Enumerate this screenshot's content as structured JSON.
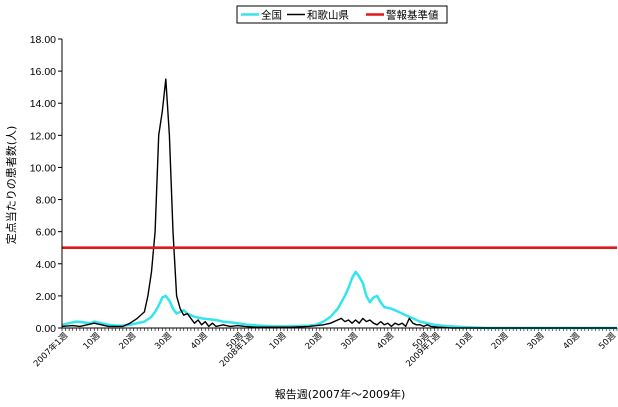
{
  "chart_data": {
    "type": "line",
    "xlabel": "報告週(2007年〜2009年)",
    "ylabel": "定点当たりの患者数(人)",
    "ylim": [
      0,
      18
    ],
    "yticks": [
      "0.00",
      "2.00",
      "4.00",
      "6.00",
      "8.00",
      "10.00",
      "12.00",
      "14.00",
      "16.00",
      "18.00"
    ],
    "xtick_labels": [
      {
        "week": 1,
        "label": "2007年1週"
      },
      {
        "week": 10,
        "label": "10週"
      },
      {
        "week": 20,
        "label": "20週"
      },
      {
        "week": 30,
        "label": "30週"
      },
      {
        "week": 40,
        "label": "40週"
      },
      {
        "week": 50,
        "label": "50週"
      },
      {
        "week": 53,
        "label": "2008年1週"
      },
      {
        "week": 62,
        "label": "10週"
      },
      {
        "week": 72,
        "label": "20週"
      },
      {
        "week": 82,
        "label": "30週"
      },
      {
        "week": 92,
        "label": "40週"
      },
      {
        "week": 102,
        "label": "50週"
      },
      {
        "week": 105,
        "label": "2009年1週"
      },
      {
        "week": 114,
        "label": "10週"
      },
      {
        "week": 124,
        "label": "20週"
      },
      {
        "week": 134,
        "label": "30週"
      },
      {
        "week": 144,
        "label": "40週"
      },
      {
        "week": 154,
        "label": "50週"
      }
    ],
    "x_range": [
      1,
      156
    ],
    "legend_position": "top",
    "grid": false,
    "series": [
      {
        "name": "全国",
        "color": "#33e6ee",
        "points": [
          [
            1,
            0.2
          ],
          [
            3,
            0.3
          ],
          [
            5,
            0.4
          ],
          [
            7,
            0.35
          ],
          [
            9,
            0.3
          ],
          [
            10,
            0.4
          ],
          [
            12,
            0.3
          ],
          [
            14,
            0.2
          ],
          [
            16,
            0.15
          ],
          [
            18,
            0.15
          ],
          [
            20,
            0.2
          ],
          [
            22,
            0.3
          ],
          [
            24,
            0.4
          ],
          [
            26,
            0.7
          ],
          [
            27,
            1.0
          ],
          [
            28,
            1.4
          ],
          [
            29,
            1.9
          ],
          [
            30,
            2.0
          ],
          [
            31,
            1.7
          ],
          [
            32,
            1.2
          ],
          [
            33,
            0.9
          ],
          [
            34,
            1.0
          ],
          [
            35,
            1.1
          ],
          [
            36,
            0.9
          ],
          [
            37,
            0.8
          ],
          [
            38,
            0.7
          ],
          [
            40,
            0.6
          ],
          [
            42,
            0.55
          ],
          [
            44,
            0.5
          ],
          [
            46,
            0.4
          ],
          [
            48,
            0.35
          ],
          [
            50,
            0.3
          ],
          [
            53,
            0.2
          ],
          [
            56,
            0.15
          ],
          [
            60,
            0.1
          ],
          [
            65,
            0.1
          ],
          [
            70,
            0.15
          ],
          [
            72,
            0.2
          ],
          [
            74,
            0.4
          ],
          [
            76,
            0.7
          ],
          [
            78,
            1.2
          ],
          [
            80,
            2.0
          ],
          [
            81,
            2.5
          ],
          [
            82,
            3.1
          ],
          [
            83,
            3.5
          ],
          [
            84,
            3.2
          ],
          [
            85,
            2.8
          ],
          [
            86,
            2.0
          ],
          [
            87,
            1.6
          ],
          [
            88,
            1.9
          ],
          [
            89,
            2.0
          ],
          [
            90,
            1.6
          ],
          [
            91,
            1.3
          ],
          [
            93,
            1.2
          ],
          [
            95,
            1.0
          ],
          [
            97,
            0.8
          ],
          [
            99,
            0.6
          ],
          [
            101,
            0.4
          ],
          [
            103,
            0.3
          ],
          [
            105,
            0.2
          ],
          [
            107,
            0.15
          ],
          [
            110,
            0.1
          ],
          [
            114,
            0.05
          ],
          [
            118,
            0.02
          ],
          [
            120,
            0.0
          ],
          [
            156,
            0.0
          ]
        ]
      },
      {
        "name": "和歌山県",
        "color": "#000000",
        "points": [
          [
            1,
            0.1
          ],
          [
            4,
            0.15
          ],
          [
            6,
            0.1
          ],
          [
            8,
            0.2
          ],
          [
            10,
            0.3
          ],
          [
            12,
            0.2
          ],
          [
            14,
            0.1
          ],
          [
            16,
            0.1
          ],
          [
            18,
            0.1
          ],
          [
            20,
            0.3
          ],
          [
            22,
            0.6
          ],
          [
            24,
            1.0
          ],
          [
            25,
            2.0
          ],
          [
            26,
            3.5
          ],
          [
            27,
            6.0
          ],
          [
            28,
            12.0
          ],
          [
            29,
            13.5
          ],
          [
            30,
            15.5
          ],
          [
            31,
            12.0
          ],
          [
            32,
            6.0
          ],
          [
            33,
            2.0
          ],
          [
            34,
            1.2
          ],
          [
            35,
            0.8
          ],
          [
            36,
            0.9
          ],
          [
            37,
            0.6
          ],
          [
            38,
            0.3
          ],
          [
            39,
            0.5
          ],
          [
            40,
            0.2
          ],
          [
            41,
            0.4
          ],
          [
            42,
            0.1
          ],
          [
            43,
            0.3
          ],
          [
            44,
            0.1
          ],
          [
            46,
            0.2
          ],
          [
            48,
            0.1
          ],
          [
            50,
            0.15
          ],
          [
            52,
            0.1
          ],
          [
            55,
            0.05
          ],
          [
            60,
            0.05
          ],
          [
            65,
            0.05
          ],
          [
            70,
            0.1
          ],
          [
            74,
            0.2
          ],
          [
            76,
            0.3
          ],
          [
            78,
            0.5
          ],
          [
            79,
            0.6
          ],
          [
            80,
            0.4
          ],
          [
            81,
            0.5
          ],
          [
            82,
            0.3
          ],
          [
            83,
            0.5
          ],
          [
            84,
            0.3
          ],
          [
            85,
            0.6
          ],
          [
            86,
            0.4
          ],
          [
            87,
            0.5
          ],
          [
            88,
            0.3
          ],
          [
            89,
            0.2
          ],
          [
            90,
            0.4
          ],
          [
            91,
            0.2
          ],
          [
            92,
            0.3
          ],
          [
            93,
            0.1
          ],
          [
            94,
            0.3
          ],
          [
            95,
            0.2
          ],
          [
            96,
            0.3
          ],
          [
            97,
            0.1
          ],
          [
            98,
            0.6
          ],
          [
            99,
            0.3
          ],
          [
            100,
            0.2
          ],
          [
            101,
            0.2
          ],
          [
            102,
            0.1
          ],
          [
            103,
            0.2
          ],
          [
            104,
            0.1
          ],
          [
            106,
            0.05
          ],
          [
            110,
            0.0
          ],
          [
            156,
            0.0
          ]
        ]
      },
      {
        "name": "警報基準値",
        "color": "#e0191a",
        "points": [
          [
            1,
            5
          ],
          [
            156,
            5
          ]
        ]
      }
    ]
  }
}
